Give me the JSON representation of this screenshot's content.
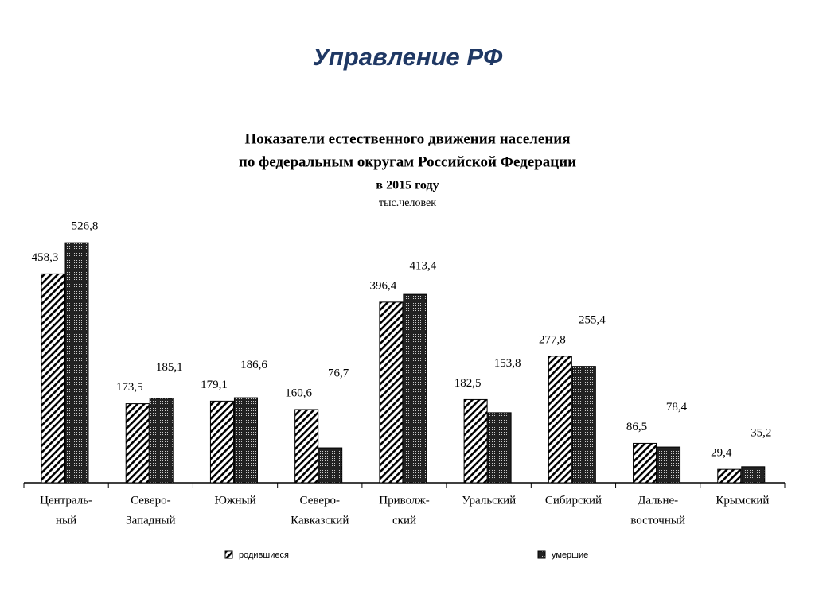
{
  "slide_title": "Управление РФ",
  "chart_data": {
    "type": "bar",
    "title": [
      "Показатели естественного движения населения",
      "по федеральным округам Российской Федерации",
      "в 2015 году"
    ],
    "subtitle": "тыс.человек",
    "categories": [
      [
        "Централь-",
        "ный"
      ],
      [
        "Северо-",
        "Западный"
      ],
      [
        "Южный"
      ],
      [
        "Северо-",
        "Кавказский"
      ],
      [
        "Приволж-",
        "ский"
      ],
      [
        "Уральский"
      ],
      [
        "Сибирский"
      ],
      [
        "Дальне-",
        "восточный"
      ],
      [
        "Крымский"
      ]
    ],
    "series": [
      {
        "name": "родившиеся",
        "color": "#000000",
        "pattern": "diagonal",
        "values": [
          458.3,
          173.5,
          179.1,
          160.6,
          396.4,
          182.5,
          277.8,
          86.5,
          29.4
        ],
        "value_labels": [
          "458,3",
          "173,5",
          "179,1",
          "160,6",
          "396,4",
          "182,5",
          "277,8",
          "86,5",
          "29,4"
        ]
      },
      {
        "name": "умершие",
        "color": "#000000",
        "pattern": "crosshatch",
        "values": [
          526.8,
          185.1,
          186.6,
          76.7,
          413.4,
          153.8,
          255.4,
          78.4,
          35.2
        ],
        "value_labels": [
          "526,8",
          "185,1",
          "186,6",
          "76,7",
          "413,4",
          "153,8",
          "255,4",
          "78,4",
          "35,2"
        ]
      }
    ],
    "ylim": [
      0,
      550
    ],
    "legend": "bottom"
  }
}
